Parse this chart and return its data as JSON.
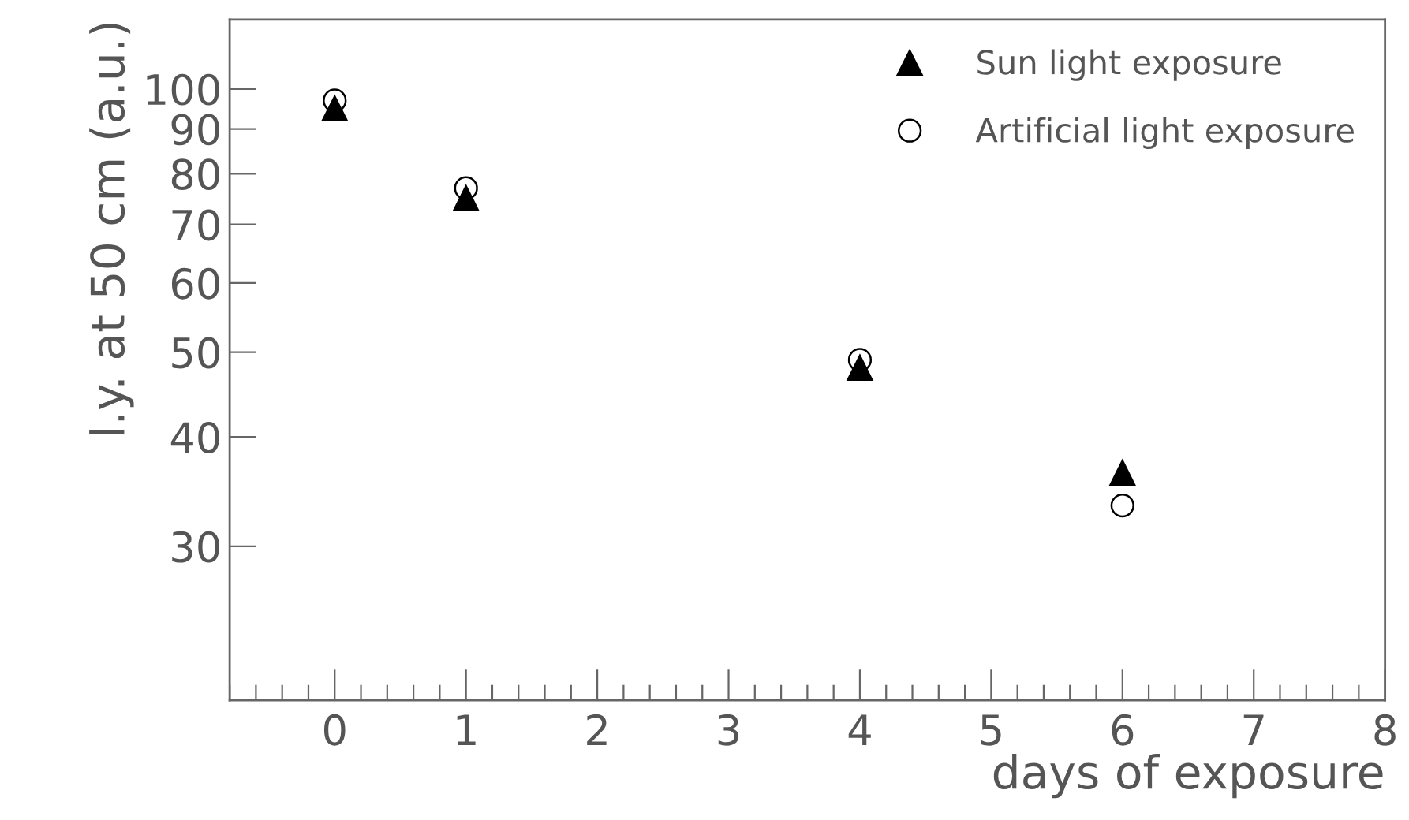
{
  "chart_data": {
    "type": "scatter",
    "xlabel": "days of exposure",
    "ylabel": "l.y. at 50 cm (a.u.)",
    "log": "y",
    "xlim": [
      -0.8,
      8
    ],
    "xticks": [
      0,
      1,
      2,
      3,
      4,
      5,
      6,
      7,
      8
    ],
    "ylim": [
      20,
      120
    ],
    "yticks": [
      30,
      40,
      50,
      60,
      70,
      80,
      90,
      100
    ],
    "legend": "top right",
    "grid": false,
    "series": [
      {
        "name": "Sun light exposure",
        "color": "#000000",
        "marker": "triangle",
        "x": [
          0,
          1,
          4,
          6
        ],
        "values": [
          95,
          75,
          48,
          36.4
        ]
      },
      {
        "name": "Artificial light exposure",
        "color": "#000000",
        "marker": "circle",
        "x": [
          0,
          1,
          4,
          6
        ],
        "values": [
          97,
          77,
          49,
          33.4
        ]
      }
    ]
  }
}
